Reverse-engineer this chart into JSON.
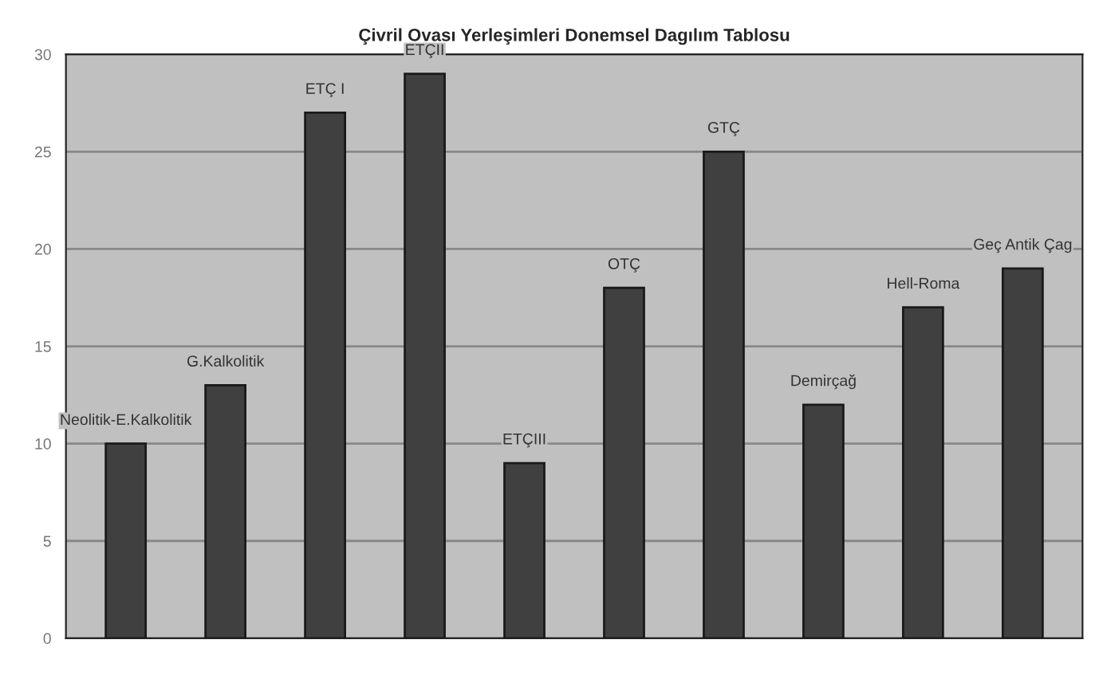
{
  "chart_data": {
    "type": "bar",
    "title": "Çivril Ovası Yerleşimleri Donemsel Dagılım Tablosu",
    "categories": [
      "Neolitik-E.Kalkolitik",
      "G.Kalkolitik",
      "ETÇ I",
      "ETÇII",
      "ETÇIII",
      "OTÇ",
      "GTÇ",
      "Demirçağ",
      "Hell-Roma",
      "Geç Antik Çag"
    ],
    "values": [
      10,
      13,
      27,
      29,
      9,
      18,
      25,
      12,
      17,
      19
    ],
    "color": "#404040",
    "ylim": [
      0,
      30
    ],
    "yticks": [
      0,
      5,
      10,
      15,
      20,
      25,
      30
    ],
    "grid": "y",
    "tick_labels": "y"
  }
}
